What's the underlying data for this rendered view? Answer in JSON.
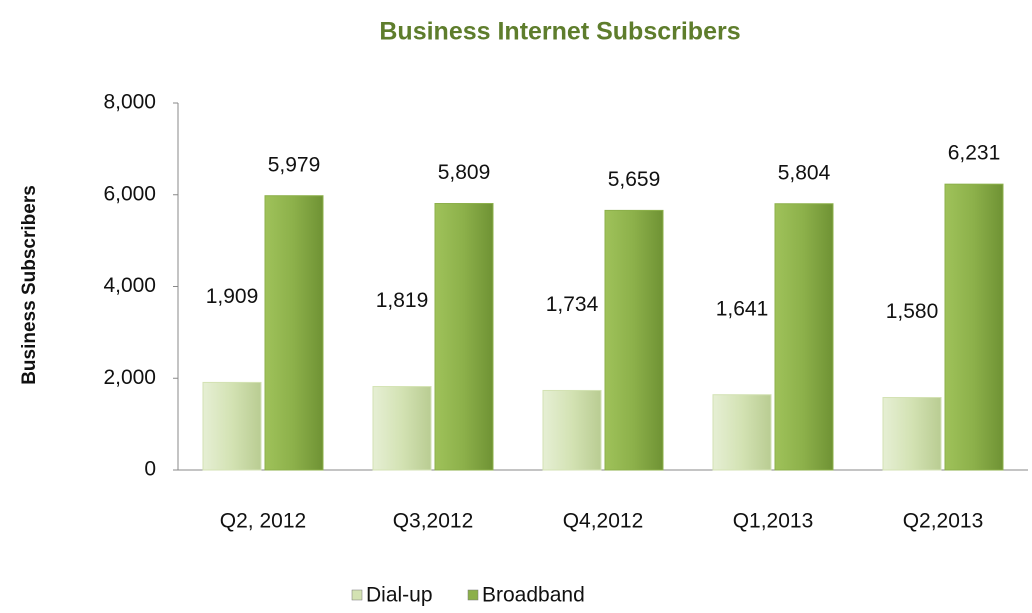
{
  "chart_data": {
    "type": "bar",
    "title": "Business Internet Subscribers",
    "y_label": "Business Subscribers",
    "categories": [
      "Q2, 2012",
      "Q3,2012",
      "Q4,2012",
      "Q1,2013",
      "Q2,2013"
    ],
    "series": [
      {
        "name": "Dial-up",
        "color": "#d3e2b3",
        "values": [
          1909,
          1819,
          1734,
          1641,
          1580
        ],
        "value_labels": [
          "1,909",
          "1,819",
          "1,734",
          "1,641",
          "1,580"
        ]
      },
      {
        "name": "Broadband",
        "color": "#8cb04a",
        "values": [
          5979,
          5809,
          5659,
          5804,
          6231
        ],
        "value_labels": [
          "5,979",
          "5,809",
          "5,659",
          "5,804",
          "6,231"
        ]
      }
    ],
    "ylim": [
      0,
      8000
    ],
    "yticks": [
      0,
      {
        "value": 2000,
        "label": "2,000"
      },
      {
        "value": 4000,
        "label": "4,000"
      },
      {
        "value": 6000,
        "label": "6,000"
      },
      {
        "value": 8000,
        "label": "8,000"
      }
    ],
    "grid": false,
    "legend": "bottom"
  }
}
